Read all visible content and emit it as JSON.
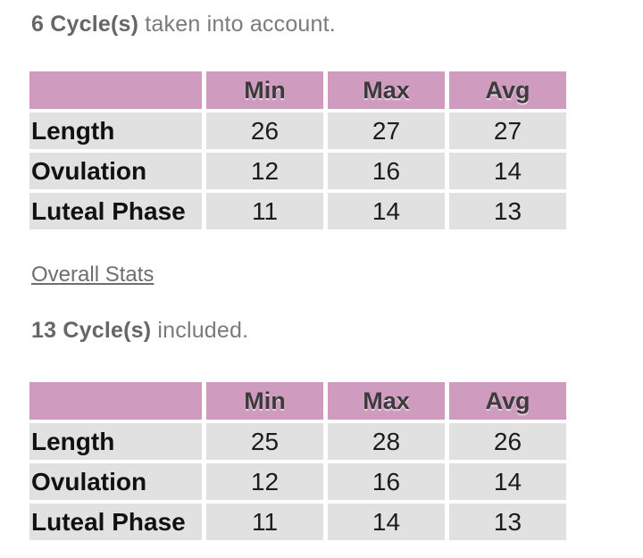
{
  "colors": {
    "table_header_bg": "#cf9cc0",
    "table_row_bg": "#e2e1e1",
    "header_text": "#3b3b3b",
    "body_text": "#1c1c1c",
    "caption_text": "#7b7b7b"
  },
  "current": {
    "count": "6 Cycle(s)",
    "suffix": " taken into account.",
    "table": {
      "headers": [
        "",
        "Min",
        "Max",
        "Avg"
      ],
      "rows": [
        {
          "label": "Length",
          "min": "26",
          "max": "27",
          "avg": "27"
        },
        {
          "label": "Ovulation",
          "min": "12",
          "max": "16",
          "avg": "14"
        },
        {
          "label": "Luteal Phase",
          "min": "11",
          "max": "14",
          "avg": "13"
        }
      ]
    }
  },
  "overall_link_label": "Overall Stats",
  "overall": {
    "count": "13 Cycle(s)",
    "suffix": " included.",
    "table": {
      "headers": [
        "",
        "Min",
        "Max",
        "Avg"
      ],
      "rows": [
        {
          "label": "Length",
          "min": "25",
          "max": "28",
          "avg": "26"
        },
        {
          "label": "Ovulation",
          "min": "12",
          "max": "16",
          "avg": "14"
        },
        {
          "label": "Luteal Phase",
          "min": "11",
          "max": "14",
          "avg": "13"
        }
      ]
    }
  }
}
